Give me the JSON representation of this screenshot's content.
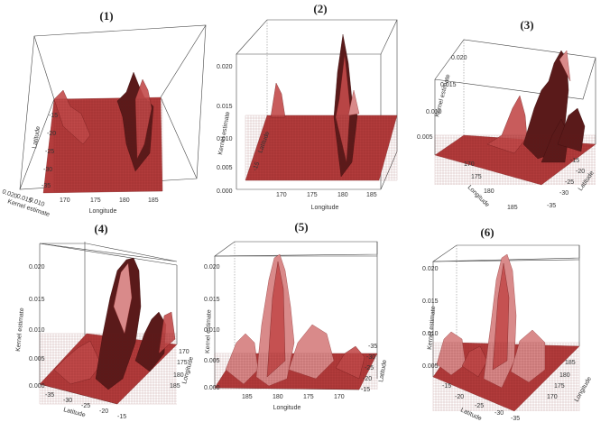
{
  "chart_data": [
    {
      "type": "surface3d",
      "title": "(1)",
      "xlabel": "Longitude",
      "ylabel": "Latitude",
      "zlabel": "Kernel estimate",
      "x_ticks": [
        "170",
        "175",
        "180",
        "185"
      ],
      "y_ticks": [
        "-15",
        "-20",
        "-25",
        "-30",
        "-35"
      ],
      "z_ticks": [
        "0.020",
        "0.015",
        "0.010",
        "0.005",
        "0.000"
      ],
      "peaks": [
        {
          "longitude": 181,
          "latitude": -18,
          "density": 0.008
        },
        {
          "longitude": 183,
          "latitude": -22,
          "density": 0.01
        },
        {
          "longitude": 166,
          "latitude": -17,
          "density": 0.004
        }
      ]
    },
    {
      "type": "surface3d",
      "title": "(2)",
      "xlabel": "Longitude",
      "ylabel": "Latitude",
      "zlabel": "Kernel estimate",
      "x_ticks": [
        "170",
        "175",
        "180",
        "185"
      ],
      "y_ticks": [
        "-35",
        "-30",
        "-25",
        "-20",
        "-15"
      ],
      "z_ticks": [
        "0.020",
        "0.015",
        "0.010",
        "0.005",
        "0.000"
      ],
      "peaks": [
        {
          "longitude": 182,
          "latitude": -20,
          "density": 0.02
        },
        {
          "longitude": 181,
          "latitude": -24,
          "density": 0.013
        },
        {
          "longitude": 167,
          "latitude": -16,
          "density": 0.008
        }
      ]
    },
    {
      "type": "surface3d",
      "title": "(3)",
      "xlabel": "Longitude",
      "ylabel": "Latitude",
      "zlabel": "Kernel estimate",
      "x_ticks": [
        "170",
        "175",
        "180",
        "185"
      ],
      "y_ticks": [
        "-15",
        "-20",
        "-25",
        "-30",
        "-35"
      ],
      "z_ticks": [
        "0.020",
        "0.015",
        "0.010",
        "0.005"
      ],
      "peaks": [
        {
          "longitude": 182,
          "latitude": -20,
          "density": 0.02
        },
        {
          "longitude": 181,
          "latitude": -25,
          "density": 0.014
        },
        {
          "longitude": 167,
          "latitude": -16,
          "density": 0.007
        }
      ]
    },
    {
      "type": "surface3d",
      "title": "(4)",
      "xlabel": "Latitude",
      "ylabel": "Longitude",
      "zlabel": "Kernel estimate",
      "x_ticks": [
        "-35",
        "-30",
        "-25",
        "-20",
        "-15"
      ],
      "y_ticks": [
        "185",
        "180",
        "175",
        "170"
      ],
      "z_ticks": [
        "0.020",
        "0.015",
        "0.010",
        "0.005",
        "0.000"
      ],
      "peaks": [
        {
          "longitude": 182,
          "latitude": -20,
          "density": 0.02
        },
        {
          "longitude": 181,
          "latitude": -24,
          "density": 0.012
        },
        {
          "longitude": 167,
          "latitude": -16,
          "density": 0.007
        }
      ]
    },
    {
      "type": "surface3d",
      "title": "(5)",
      "xlabel": "Longitude",
      "ylabel": "Latitude",
      "zlabel": "Kernel estimate",
      "x_ticks": [
        "185",
        "180",
        "175",
        "170"
      ],
      "y_ticks": [
        "-35",
        "-30",
        "-25",
        "-20",
        "-15"
      ],
      "z_ticks": [
        "0.020",
        "0.015",
        "0.010",
        "0.005",
        "0.000"
      ],
      "peaks": [
        {
          "longitude": 182,
          "latitude": -20,
          "density": 0.02
        },
        {
          "longitude": 181,
          "latitude": -24,
          "density": 0.013
        },
        {
          "longitude": 167,
          "latitude": -16,
          "density": 0.006
        }
      ]
    },
    {
      "type": "surface3d",
      "title": "(6)",
      "xlabel": "Latitude",
      "ylabel": "Longitude",
      "zlabel": "Kernel estimate",
      "x_ticks": [
        "-15",
        "-20",
        "-25",
        "-30",
        "-35"
      ],
      "y_ticks": [
        "185",
        "180",
        "175",
        "170"
      ],
      "z_ticks": [
        "0.020",
        "0.015",
        "0.010",
        "0.005"
      ],
      "peaks": [
        {
          "longitude": 182,
          "latitude": -20,
          "density": 0.02
        },
        {
          "longitude": 181,
          "latitude": -24,
          "density": 0.012
        },
        {
          "longitude": 167,
          "latitude": -16,
          "density": 0.006
        }
      ]
    }
  ]
}
